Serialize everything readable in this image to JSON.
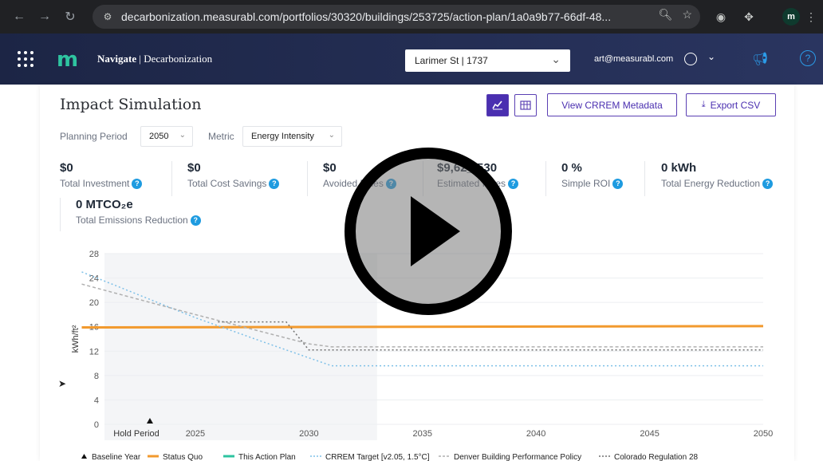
{
  "browser": {
    "url": "decarbonization.measurabl.com/portfolios/30320/buildings/253725/action-plan/1a0a9b77-66df-48...",
    "profile_initial": "m"
  },
  "app": {
    "logo": "m",
    "brand_bold": "Navigate",
    "brand_rest": " | Decarbonization",
    "building": "Larimer St | 1737",
    "user_email": "art@measurabl.com",
    "help": "?"
  },
  "panel": {
    "title": "Impact Simulation",
    "crrem_btn": "View CRREM Metadata",
    "export_btn": "Export CSV",
    "planning_label": "Planning Period",
    "planning_value": "2050",
    "metric_label": "Metric",
    "metric_value": "Energy Intensity"
  },
  "metrics": [
    {
      "value": "$0",
      "label": "Total Investment"
    },
    {
      "value": "$0",
      "label": "Total Cost Savings"
    },
    {
      "value": "$0",
      "label": "Avoided Fines"
    },
    {
      "value": "$9,62_,530",
      "label": "Estimated Fines"
    },
    {
      "value": "0 %",
      "label": "Simple ROI"
    },
    {
      "value": "0 kWh",
      "label": "Total Energy Reduction"
    },
    {
      "value": "0 MTCO₂e",
      "label": "Total Emissions Reduction"
    }
  ],
  "chart_data": {
    "type": "line",
    "ylabel": "kWh/ft²",
    "xlabel": "",
    "ylim": [
      0,
      28
    ],
    "yticks": [
      0,
      4,
      8,
      12,
      16,
      20,
      24,
      28
    ],
    "xlim": [
      2020,
      2050
    ],
    "xticks": [
      {
        "x": 2025,
        "label": "2025"
      },
      {
        "x": 2030,
        "label": "2030"
      },
      {
        "x": 2035,
        "label": "2035"
      },
      {
        "x": 2040,
        "label": "2040"
      },
      {
        "x": 2045,
        "label": "2045"
      },
      {
        "x": 2050,
        "label": "2050"
      }
    ],
    "hold_period_label": "Hold Period",
    "hold_period": [
      2020,
      2033
    ],
    "baseline_year": 2023,
    "series": [
      {
        "name": "Status Quo",
        "color": "#f29a2e",
        "style": "solid",
        "points": [
          [
            2020,
            15.9
          ],
          [
            2050,
            16.1
          ]
        ]
      },
      {
        "name": "This Action Plan",
        "color": "#2ec4a0",
        "style": "solid",
        "points": []
      },
      {
        "name": "CRREM Target [v2.05, 1.5°C]",
        "color": "#7ec0e8",
        "style": "dotted",
        "points": [
          [
            2020,
            25
          ],
          [
            2022,
            22
          ],
          [
            2025,
            17.5
          ],
          [
            2028,
            13.5
          ],
          [
            2031,
            9.6
          ],
          [
            2050,
            9.6
          ]
        ]
      },
      {
        "name": "Denver Building Performance Policy",
        "color": "#b0b0b0",
        "style": "dashed",
        "points": [
          [
            2020,
            23
          ],
          [
            2022,
            21
          ],
          [
            2025,
            18
          ],
          [
            2030,
            13.2
          ],
          [
            2031,
            12.7
          ],
          [
            2050,
            12.7
          ]
        ]
      },
      {
        "name": "Colorado Regulation 28",
        "color": "#707070",
        "style": "dotted",
        "points": [
          [
            2026,
            16.8
          ],
          [
            2029,
            16.8
          ],
          [
            2030,
            12.2
          ],
          [
            2050,
            12.2
          ]
        ]
      }
    ],
    "legend": [
      {
        "label": "Baseline Year",
        "marker": "triangle",
        "color": "#111"
      },
      {
        "label": "Status Quo",
        "marker": "line",
        "color": "#f29a2e"
      },
      {
        "label": "This Action Plan",
        "marker": "line",
        "color": "#2ec4a0"
      },
      {
        "label": "CRREM Target [v2.05, 1.5°C]",
        "marker": "dotted",
        "color": "#7ec0e8"
      },
      {
        "label": "Denver Building Performance Policy",
        "marker": "dashed",
        "color": "#b0b0b0"
      },
      {
        "label": "Colorado Regulation 28",
        "marker": "dotted",
        "color": "#707070"
      }
    ]
  }
}
